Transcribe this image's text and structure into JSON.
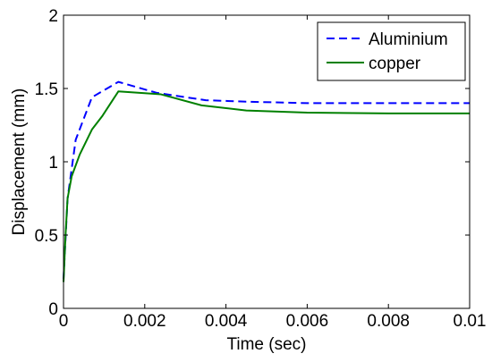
{
  "chart_data": {
    "type": "line",
    "title": "",
    "xlabel": "Time (sec)",
    "ylabel": "Displacement (mm)",
    "xlim": [
      0,
      0.01
    ],
    "ylim": [
      0,
      2
    ],
    "grid": false,
    "legend_position": "top-right",
    "x_ticks": [
      {
        "value": 0,
        "label": "0"
      },
      {
        "value": 0.002,
        "label": "0.002"
      },
      {
        "value": 0.004,
        "label": "0.004"
      },
      {
        "value": 0.006,
        "label": "0.006"
      },
      {
        "value": 0.008,
        "label": "0.008"
      },
      {
        "value": 0.01,
        "label": "0.01"
      }
    ],
    "y_ticks": [
      {
        "value": 0,
        "label": "0"
      },
      {
        "value": 0.5,
        "label": "0.5"
      },
      {
        "value": 1,
        "label": "1"
      },
      {
        "value": 1.5,
        "label": "1.5"
      },
      {
        "value": 2,
        "label": "2"
      }
    ],
    "series": [
      {
        "name": "Aluminium",
        "color": "#0000ff",
        "style": "dashed",
        "x": [
          0,
          0.0001,
          0.0003,
          0.0007,
          0.00135,
          0.0023,
          0.0035,
          0.0045,
          0.006,
          0.008,
          0.01
        ],
        "y": [
          0.2,
          0.75,
          1.15,
          1.44,
          1.545,
          1.47,
          1.42,
          1.41,
          1.4,
          1.4,
          1.4
        ]
      },
      {
        "name": "copper",
        "color": "#008000",
        "style": "solid",
        "x": [
          0,
          5e-05,
          0.0001,
          0.0002,
          0.0004,
          0.0007,
          0.00095,
          0.00135,
          0.0024,
          0.0034,
          0.0045,
          0.006,
          0.008,
          0.01
        ],
        "y": [
          0.18,
          0.5,
          0.75,
          0.9,
          1.05,
          1.22,
          1.31,
          1.48,
          1.46,
          1.385,
          1.35,
          1.335,
          1.33,
          1.33
        ]
      }
    ]
  }
}
